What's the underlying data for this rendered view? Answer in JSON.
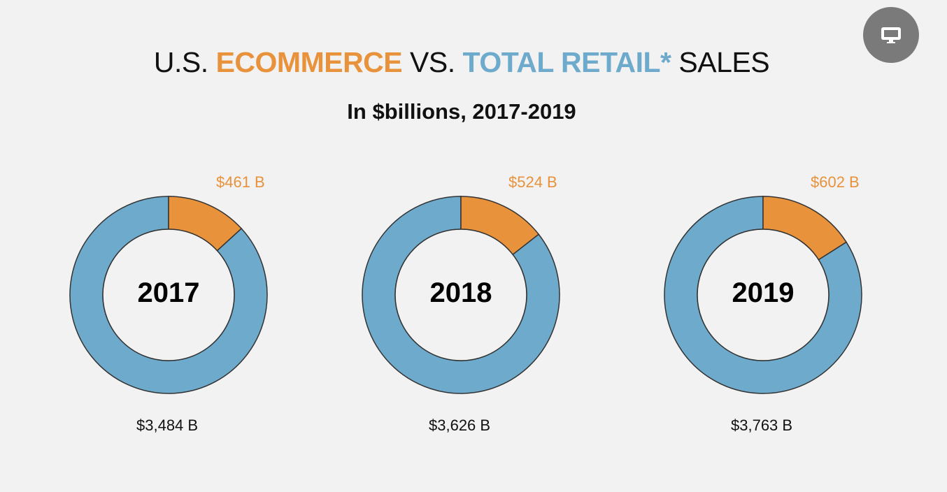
{
  "title": {
    "prefix": "U.S. ",
    "ecommerce": "ECOMMERCE",
    "middle": " VS. ",
    "total_retail": "TOTAL RETAIL*",
    "suffix": " SALES"
  },
  "subtitle": "In $billions, 2017-2019",
  "icons": {
    "screen": "monitor-icon"
  },
  "colors": {
    "ecommerce": "#e8923c",
    "total_retail": "#6eaacb",
    "background": "#f2f2f2"
  },
  "chart_data": [
    {
      "type": "pie",
      "variant": "donut",
      "center_label": "2017",
      "slices": [
        {
          "label": "$461 B",
          "value": 461
        },
        {
          "label": "$3,484 B",
          "value": 3484
        }
      ]
    },
    {
      "type": "pie",
      "variant": "donut",
      "center_label": "2018",
      "slices": [
        {
          "label": "$524 B",
          "value": 524
        },
        {
          "label": "$3,626 B",
          "value": 3626
        }
      ]
    },
    {
      "type": "pie",
      "variant": "donut",
      "center_label": "2019",
      "slices": [
        {
          "label": "$602 B",
          "value": 602
        },
        {
          "label": "$3,763 B",
          "value": 3763
        }
      ]
    }
  ]
}
